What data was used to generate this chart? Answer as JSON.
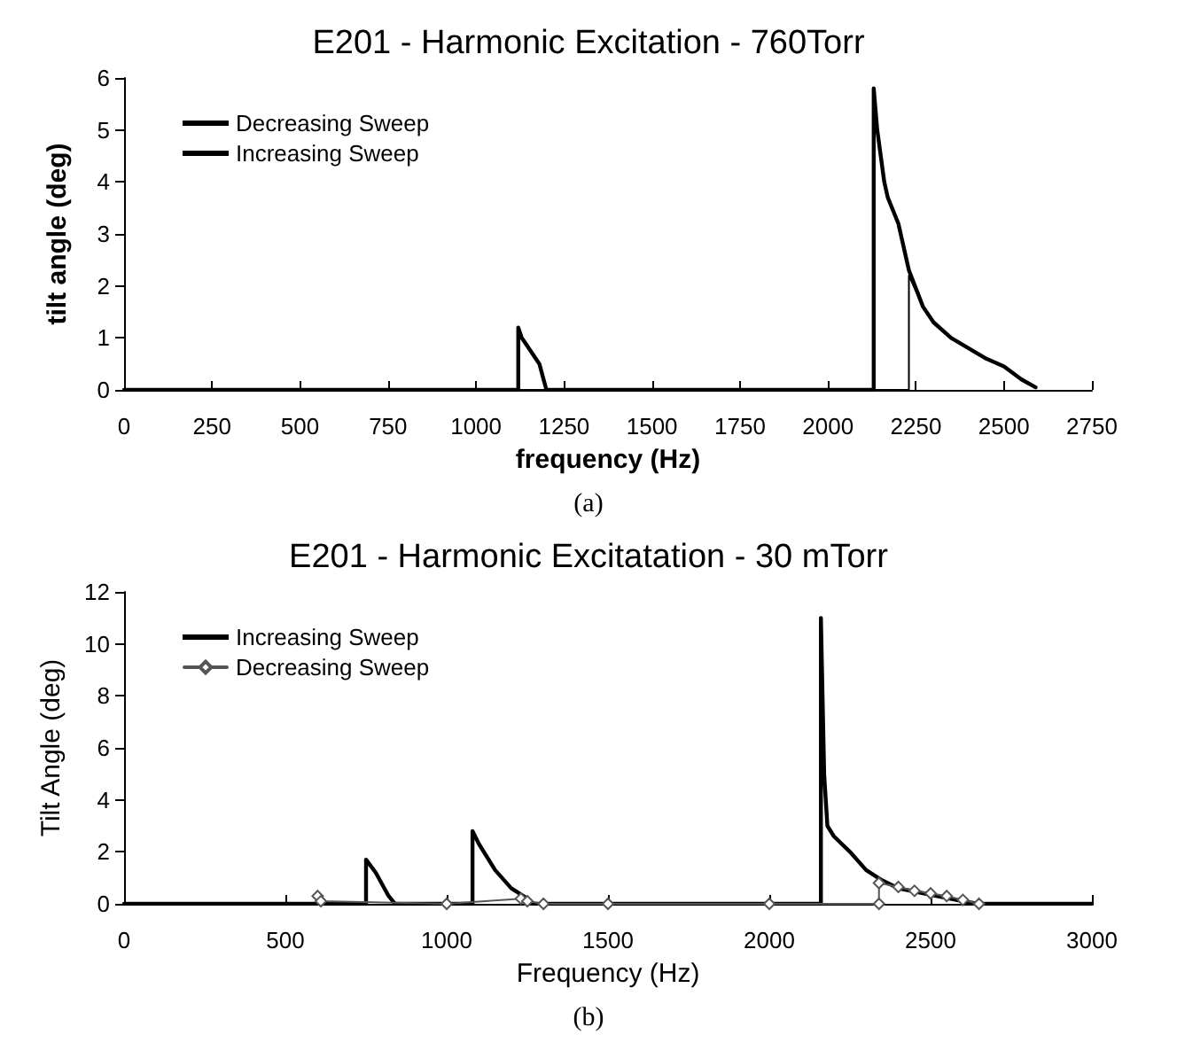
{
  "chart_data": [
    {
      "type": "line",
      "title": "E201 - Harmonic Excitation - 760Torr",
      "xlabel": "frequency (Hz)",
      "ylabel": "tilt angle (deg)",
      "annotations": [
        "(a)"
      ],
      "legend": "top left",
      "grid": false,
      "marker": "none",
      "line_style": "solid",
      "xlim": [
        0,
        2750
      ],
      "xticks": [
        0,
        250,
        500,
        750,
        1000,
        1250,
        1500,
        1750,
        2000,
        2250,
        2500,
        2750
      ],
      "ylim": [
        0,
        6
      ],
      "yticks": [
        0,
        1,
        2,
        3,
        4,
        5,
        6
      ],
      "series": [
        {
          "name": "Decreasing Sweep",
          "color": "#000000",
          "x": [
            0,
            1120,
            1120,
            1130,
            1150,
            1180,
            1200,
            2130,
            2130,
            2140,
            2160,
            2170,
            2200,
            2230,
            2270,
            2300,
            2350,
            2400,
            2450,
            2500,
            2550,
            2590
          ],
          "values": [
            0,
            0,
            1.2,
            1.0,
            0.8,
            0.5,
            0,
            0,
            5.8,
            5.0,
            4.0,
            3.7,
            3.2,
            2.3,
            1.6,
            1.3,
            1.0,
            0.8,
            0.6,
            0.45,
            0.2,
            0.05
          ]
        },
        {
          "name": "Increasing Sweep",
          "color": "#000000",
          "x": [
            0,
            2230,
            2230,
            2270,
            2300,
            2350,
            2400,
            2450,
            2500,
            2550,
            2590
          ],
          "values": [
            0,
            0,
            2.2,
            1.6,
            1.3,
            1.0,
            0.8,
            0.6,
            0.45,
            0.2,
            0.05
          ]
        }
      ]
    },
    {
      "type": "line",
      "title": "E201 - Harmonic Excitatation - 30 mTorr",
      "xlabel": "Frequency (Hz)",
      "ylabel": "Tilt Angle (deg)",
      "annotations": [
        "(b)"
      ],
      "legend": "top left",
      "grid": false,
      "line_style": "solid",
      "xlim": [
        0,
        3000
      ],
      "xticks": [
        0,
        500,
        1000,
        1500,
        2000,
        2500,
        3000
      ],
      "ylim": [
        0,
        12
      ],
      "yticks": [
        0,
        2,
        4,
        6,
        8,
        10,
        12
      ],
      "series": [
        {
          "name": "Increasing Sweep",
          "color": "#000000",
          "marker": "none",
          "x": [
            0,
            750,
            750,
            780,
            820,
            840,
            1080,
            1080,
            1100,
            1150,
            1200,
            1250,
            1270,
            2160,
            2160,
            2170,
            2180,
            2200,
            2250,
            2300,
            2350,
            2400,
            2500,
            2600,
            2650,
            3000
          ],
          "values": [
            0,
            0,
            1.7,
            1.2,
            0.3,
            0,
            0,
            2.8,
            2.3,
            1.3,
            0.6,
            0.2,
            0,
            0,
            11,
            5,
            3,
            2.6,
            2.0,
            1.3,
            0.9,
            0.6,
            0.35,
            0.1,
            0,
            0
          ]
        },
        {
          "name": "Decreasing Sweep",
          "color": "#555555",
          "marker": "diamond",
          "x": [
            600,
            610,
            1000,
            1230,
            1250,
            1300,
            1500,
            2000,
            2340,
            2340,
            2400,
            2450,
            2500,
            2550,
            2600,
            2650
          ],
          "values": [
            0.3,
            0.1,
            0,
            0.2,
            0.1,
            0,
            0,
            0,
            0,
            0.8,
            0.65,
            0.5,
            0.4,
            0.3,
            0.15,
            0
          ]
        }
      ]
    }
  ]
}
